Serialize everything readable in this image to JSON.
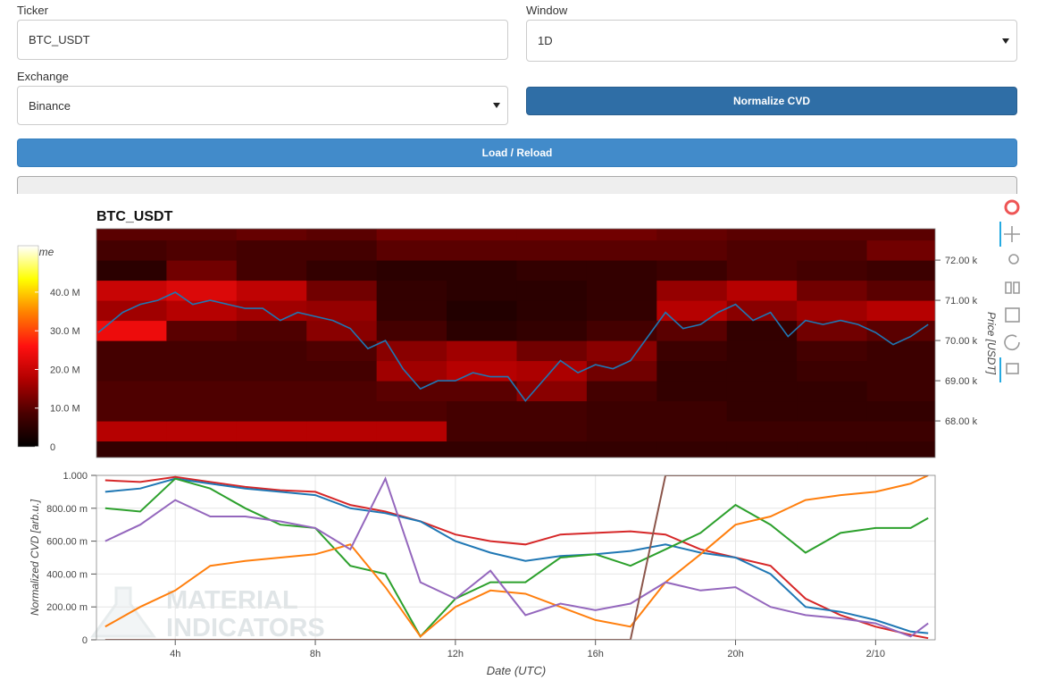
{
  "form": {
    "ticker_label": "Ticker",
    "ticker_value": "BTC_USDT",
    "window_label": "Window",
    "window_value": "1D",
    "exchange_label": "Exchange",
    "exchange_value": "Binance",
    "normalize_button": "Normalize CVD",
    "load_button": "Load / Reload"
  },
  "watermark": [
    "MATERIAL",
    "INDICATORS"
  ],
  "chart_data": [
    {
      "type": "heatmap",
      "title": "BTC_USDT",
      "y_label": "Price [USDT]",
      "xlim": [
        1.75,
        25.7
      ],
      "ylim": [
        67090,
        72780
      ],
      "yticks": [
        {
          "value": 68000,
          "label": "68.00 k"
        },
        {
          "value": 69000,
          "label": "69.00 k"
        },
        {
          "value": 70000,
          "label": "70.00 k"
        },
        {
          "value": 71000,
          "label": "71.00 k"
        },
        {
          "value": 72000,
          "label": "72.00 k"
        }
      ],
      "x_bins": [
        1.75,
        3.75,
        5.75,
        7.75,
        9.75,
        11.75,
        13.75,
        15.75,
        17.75,
        19.75,
        21.75,
        23.75,
        25.75
      ],
      "y_bins": [
        67000,
        67500,
        68000,
        68500,
        69000,
        69500,
        70000,
        70500,
        71000,
        71500,
        72000,
        72500,
        73000
      ],
      "z": [
        [
          6,
          6,
          6,
          6,
          6,
          6,
          6,
          6,
          6,
          6,
          6,
          6
        ],
        [
          18,
          18,
          18,
          18,
          18,
          8,
          8,
          7,
          7,
          7,
          7,
          7
        ],
        [
          9,
          9,
          9,
          9,
          9,
          8,
          8,
          7,
          7,
          6,
          6,
          6
        ],
        [
          9,
          9,
          9,
          9,
          10,
          10,
          14,
          8,
          6,
          6,
          6,
          7
        ],
        [
          8,
          8,
          8,
          8,
          16,
          18,
          17,
          12,
          6,
          6,
          7,
          7
        ],
        [
          8,
          8,
          8,
          9,
          14,
          16,
          12,
          14,
          7,
          6,
          8,
          7
        ],
        [
          24,
          10,
          9,
          14,
          8,
          5,
          6,
          8,
          10,
          6,
          12,
          10
        ],
        [
          16,
          18,
          16,
          15,
          6,
          4,
          5,
          6,
          18,
          14,
          16,
          18
        ],
        [
          20,
          22,
          19,
          12,
          6,
          5,
          5,
          6,
          15,
          18,
          12,
          10
        ],
        [
          5,
          12,
          8,
          6,
          5,
          5,
          6,
          6,
          7,
          9,
          8,
          7
        ],
        [
          8,
          9,
          8,
          8,
          10,
          10,
          10,
          10,
          10,
          9,
          9,
          12
        ],
        [
          10,
          10,
          11,
          10,
          12,
          12,
          12,
          12,
          11,
          10,
          10,
          10
        ]
      ],
      "colormap": [
        "#000000",
        "#4a0000",
        "#b00000",
        "#ff1010",
        "#ff8000",
        "#ffff00",
        "#ffffff"
      ],
      "colorbar": {
        "title": "Volume",
        "clim": [
          0,
          52
        ],
        "ticks": [
          0,
          {
            "value": 10,
            "label": "10.0 M"
          },
          {
            "value": 20,
            "label": "20.0 M"
          },
          {
            "value": 30,
            "label": "30.0 M"
          },
          {
            "value": 40,
            "label": "40.0 M"
          }
        ]
      },
      "series": [
        {
          "color": "#1f77b4",
          "x": [
            1.8,
            2.5,
            3,
            3.5,
            4,
            4.5,
            5,
            5.5,
            6,
            6.5,
            7,
            7.5,
            8,
            8.5,
            9,
            9.5,
            10,
            10.5,
            11,
            11.5,
            12,
            12.5,
            13,
            13.5,
            14,
            14.5,
            15,
            15.5,
            16,
            16.5,
            17,
            17.5,
            18,
            18.5,
            19,
            19.5,
            20,
            20.5,
            21,
            21.5,
            22,
            22.5,
            23,
            23.5,
            24,
            24.5,
            25,
            25.5
          ],
          "values": [
            70200,
            70700,
            70900,
            71000,
            71200,
            70900,
            71000,
            70900,
            70800,
            70800,
            70500,
            70700,
            70600,
            70500,
            70300,
            69800,
            70000,
            69300,
            68800,
            69000,
            69000,
            69200,
            69100,
            69100,
            68500,
            69000,
            69500,
            69200,
            69400,
            69300,
            69500,
            70100,
            70700,
            70300,
            70400,
            70700,
            70900,
            70500,
            70700,
            70100,
            70500,
            70400,
            70500,
            70400,
            70200,
            69900,
            70100,
            70400
          ]
        }
      ]
    },
    {
      "type": "line",
      "x_label": "Date (UTC)",
      "y_label": "Normalized CVD [arb.u.]",
      "grid": true,
      "xlim": [
        1.75,
        25.7
      ],
      "ylim": [
        0,
        1
      ],
      "xticks": [
        {
          "value": 4,
          "label": "4h"
        },
        {
          "value": 8,
          "label": "8h"
        },
        {
          "value": 12,
          "label": "12h"
        },
        {
          "value": 16,
          "label": "16h"
        },
        {
          "value": 20,
          "label": "20h"
        },
        {
          "value": 24,
          "label": "2/10"
        }
      ],
      "yticks": [
        0,
        {
          "value": 0.2,
          "label": "200.00 m"
        },
        {
          "value": 0.4,
          "label": "400.00 m"
        },
        {
          "value": 0.6,
          "label": "600.00 m"
        },
        {
          "value": 0.8,
          "label": "800.00 m"
        },
        {
          "value": 1,
          "label": "1.000"
        }
      ],
      "x": [
        2,
        3,
        4,
        5,
        6,
        7,
        8,
        9,
        10,
        11,
        12,
        13,
        14,
        15,
        16,
        17,
        18,
        19,
        20,
        21,
        22,
        23,
        24,
        25,
        25.5
      ],
      "series": [
        {
          "color": "#d62728",
          "values": [
            0.97,
            0.96,
            0.99,
            0.96,
            0.93,
            0.91,
            0.9,
            0.82,
            0.78,
            0.72,
            0.64,
            0.6,
            0.58,
            0.64,
            0.65,
            0.66,
            0.64,
            0.55,
            0.5,
            0.45,
            0.25,
            0.15,
            0.08,
            0.03,
            0.01
          ]
        },
        {
          "color": "#1f77b4",
          "values": [
            0.9,
            0.92,
            0.98,
            0.95,
            0.92,
            0.9,
            0.88,
            0.8,
            0.77,
            0.72,
            0.6,
            0.53,
            0.48,
            0.51,
            0.52,
            0.54,
            0.58,
            0.53,
            0.5,
            0.4,
            0.2,
            0.17,
            0.12,
            0.05,
            0.04
          ]
        },
        {
          "color": "#2ca02c",
          "values": [
            0.8,
            0.78,
            0.98,
            0.92,
            0.8,
            0.7,
            0.68,
            0.45,
            0.4,
            0.02,
            0.25,
            0.35,
            0.35,
            0.5,
            0.52,
            0.45,
            0.55,
            0.65,
            0.82,
            0.7,
            0.53,
            0.65,
            0.68,
            0.68,
            0.74
          ]
        },
        {
          "color": "#ff7f0e",
          "values": [
            0.08,
            0.2,
            0.3,
            0.45,
            0.48,
            0.5,
            0.52,
            0.58,
            0.32,
            0.02,
            0.2,
            0.3,
            0.28,
            0.2,
            0.12,
            0.08,
            0.35,
            0.52,
            0.7,
            0.75,
            0.85,
            0.88,
            0.9,
            0.95,
            1.0
          ]
        },
        {
          "color": "#9467bd",
          "values": [
            0.6,
            0.7,
            0.85,
            0.75,
            0.75,
            0.72,
            0.68,
            0.55,
            0.98,
            0.35,
            0.25,
            0.42,
            0.15,
            0.22,
            0.18,
            0.22,
            0.35,
            0.3,
            0.32,
            0.2,
            0.15,
            0.13,
            0.1,
            0.02,
            0.1
          ]
        },
        {
          "color": "#8c564b",
          "values": [
            0,
            0,
            0,
            0,
            0,
            0,
            0,
            0,
            0,
            0,
            0,
            0,
            0,
            0,
            0,
            0,
            1,
            1,
            1,
            1,
            1,
            1,
            1,
            1,
            1
          ]
        }
      ]
    }
  ]
}
